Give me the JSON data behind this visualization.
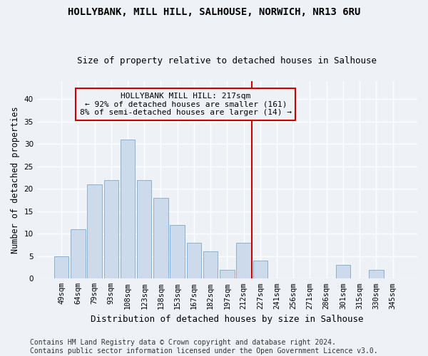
{
  "title": "HOLLYBANK, MILL HILL, SALHOUSE, NORWICH, NR13 6RU",
  "subtitle": "Size of property relative to detached houses in Salhouse",
  "xlabel": "Distribution of detached houses by size in Salhouse",
  "ylabel": "Number of detached properties",
  "footer_line1": "Contains HM Land Registry data © Crown copyright and database right 2024.",
  "footer_line2": "Contains public sector information licensed under the Open Government Licence v3.0.",
  "bar_labels": [
    "49sqm",
    "64sqm",
    "79sqm",
    "93sqm",
    "108sqm",
    "123sqm",
    "138sqm",
    "153sqm",
    "167sqm",
    "182sqm",
    "197sqm",
    "212sqm",
    "227sqm",
    "241sqm",
    "256sqm",
    "271sqm",
    "286sqm",
    "301sqm",
    "315sqm",
    "330sqm",
    "345sqm"
  ],
  "bar_values": [
    5,
    11,
    21,
    22,
    31,
    22,
    18,
    12,
    8,
    6,
    2,
    8,
    4,
    0,
    0,
    0,
    0,
    3,
    0,
    2,
    0
  ],
  "bar_color": "#ccdaeb",
  "bar_edgecolor": "#8ab0d0",
  "annotation_line1": "HOLLYBANK MILL HILL: 217sqm",
  "annotation_line2": "← 92% of detached houses are smaller (161)",
  "annotation_line3": "8% of semi-detached houses are larger (14) →",
  "vline_x": 11.5,
  "vline_color": "#cc0000",
  "annotation_box_edgecolor": "#cc0000",
  "background_color": "#eef2f7",
  "grid_color": "#ffffff",
  "ylim": [
    0,
    44
  ],
  "yticks": [
    0,
    5,
    10,
    15,
    20,
    25,
    30,
    35,
    40
  ],
  "title_fontsize": 10,
  "subtitle_fontsize": 9,
  "annotation_fontsize": 8,
  "xlabel_fontsize": 9,
  "ylabel_fontsize": 8.5,
  "footer_fontsize": 7,
  "tick_fontsize": 7.5
}
